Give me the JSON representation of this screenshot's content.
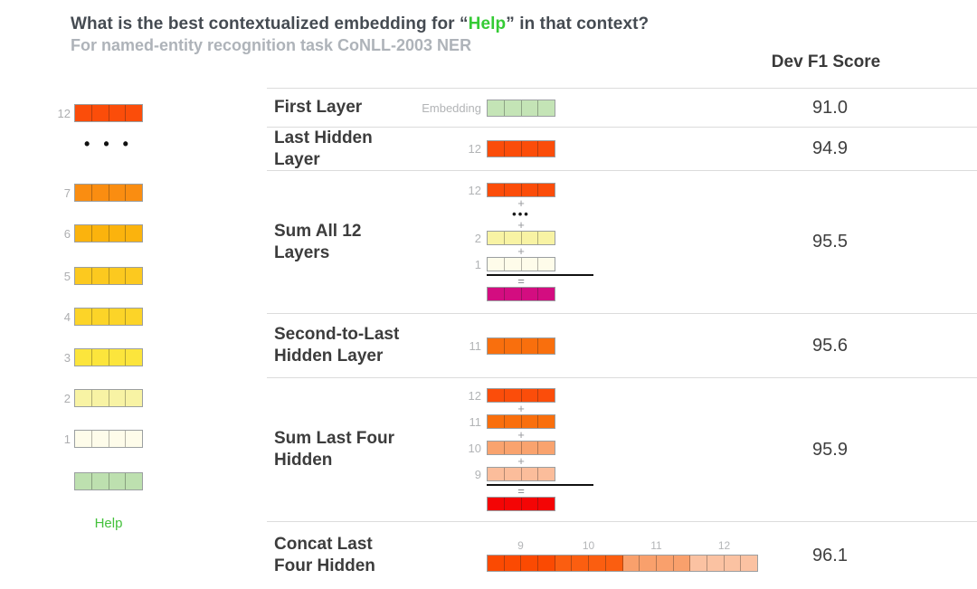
{
  "title": {
    "prefix": "What is the best contextualized embedding for “",
    "word": "Help",
    "suffix": "” in that context?"
  },
  "subtitle": "For named-entity recognition task CoNLL-2003 NER",
  "score_header": "Dev F1 Score",
  "symbols": {
    "plus": "+",
    "equals": "=",
    "dots": "•••",
    "dots_spaced": "• • •"
  },
  "colors": {
    "help_green_title": "#35CB35",
    "help_green_word": "#44C13C"
  },
  "left_stack": {
    "word": "Help",
    "layers": [
      {
        "label": "12",
        "color": "#FB4D0A"
      },
      {
        "label": "7",
        "color": "#FA8D11"
      },
      {
        "label": "6",
        "color": "#FBB30D"
      },
      {
        "label": "5",
        "color": "#FCC91F"
      },
      {
        "label": "4",
        "color": "#FCD428"
      },
      {
        "label": "3",
        "color": "#FCE53C"
      },
      {
        "label": "2",
        "color": "#F8F3A4"
      },
      {
        "label": "1",
        "color": "#FEFCEA"
      },
      {
        "label": "",
        "color": "#BDE0AF"
      }
    ]
  },
  "table": {
    "rows": [
      {
        "label": "First Layer",
        "score": "91.0",
        "vec_label": "Embedding",
        "color": "#C4E4B6"
      },
      {
        "label": "Last Hidden Layer",
        "score": "94.9",
        "vec_label": "12",
        "color": "#FB4D0A"
      },
      {
        "label": "Sum All 12\nLayers",
        "score": "95.5",
        "lines": [
          {
            "num": "12",
            "color": "#FB4D0A"
          },
          {
            "num": "2",
            "color": "#F8F3A4"
          },
          {
            "num": "1",
            "color": "#FEFCEA"
          }
        ],
        "result_color": "#D30D80"
      },
      {
        "label": "Second-to-Last\nHidden Layer",
        "score": "95.6",
        "vec_label": "11",
        "color": "#F96F0D"
      },
      {
        "label": "Sum Last Four\nHidden",
        "score": "95.9",
        "lines": [
          {
            "num": "12",
            "color": "#FB4D0A"
          },
          {
            "num": "11",
            "color": "#F96F0D"
          },
          {
            "num": "10",
            "color": "#F9A36E"
          },
          {
            "num": "9",
            "color": "#FBBD9B"
          }
        ],
        "result_color": "#F40505"
      },
      {
        "label": "Concat Last\nFour Hidden",
        "score": "96.1",
        "group_labels": [
          "9",
          "10",
          "11",
          "12"
        ],
        "cell_colors": [
          "#FB4A02",
          "#FB4A02",
          "#FB4A02",
          "#FB4A02",
          "#FB5E10",
          "#FB5E10",
          "#FB5E10",
          "#FB5E10",
          "#F9A06C",
          "#F9A06C",
          "#F9A06C",
          "#F9A06C",
          "#FBC2A2",
          "#FBC2A2",
          "#FBC2A2",
          "#FBC2A2"
        ]
      }
    ]
  }
}
